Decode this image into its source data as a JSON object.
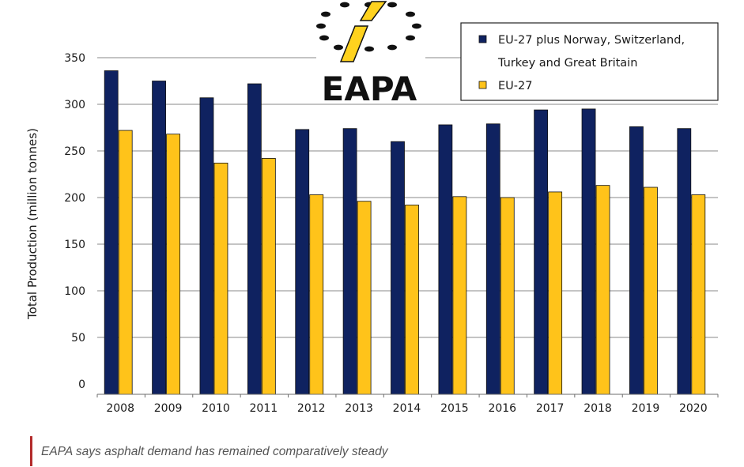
{
  "chart_data": {
    "type": "bar",
    "ylabel": "Total Production (million tonnes)",
    "ylim": [
      0,
      350
    ],
    "yticks": [
      "0",
      "50",
      "100",
      "150",
      "200",
      "250",
      "300",
      "350"
    ],
    "categories": [
      "2008",
      "2009",
      "2010",
      "2011",
      "2012",
      "2013",
      "2014",
      "2015",
      "2016",
      "2017",
      "2018",
      "2019",
      "2020"
    ],
    "series": [
      {
        "name": "EU-27 plus Norway, Switzerland, Turkey and Great Britain",
        "color": "#0f2260",
        "values": [
          336,
          325,
          307,
          322,
          273,
          274,
          260,
          278,
          279,
          294,
          295,
          276,
          274
        ]
      },
      {
        "name": "EU-27",
        "color": "#ffc31a",
        "values": [
          272,
          268,
          237,
          242,
          203,
          196,
          192,
          201,
          200,
          206,
          213,
          211,
          203
        ]
      }
    ],
    "legend": {
      "position": "top-right",
      "line1": "EU-27 plus Norway, Switzerland,",
      "line2": "Turkey and Great Britain",
      "line3": "EU-27"
    },
    "grid": true
  },
  "logo": {
    "text": "EAPA"
  },
  "caption": {
    "text": "EAPA says asphalt demand has remained comparatively steady"
  }
}
